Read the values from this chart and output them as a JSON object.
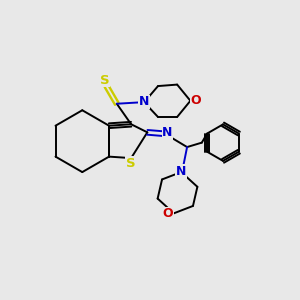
{
  "bg_color": "#e8e8e8",
  "bond_color": "#000000",
  "N_color": "#0000cc",
  "O_color": "#cc0000",
  "S_color": "#cccc00",
  "line_width": 1.4,
  "font_size": 8.5,
  "xlim": [
    0,
    10
  ],
  "ylim": [
    0,
    10
  ]
}
